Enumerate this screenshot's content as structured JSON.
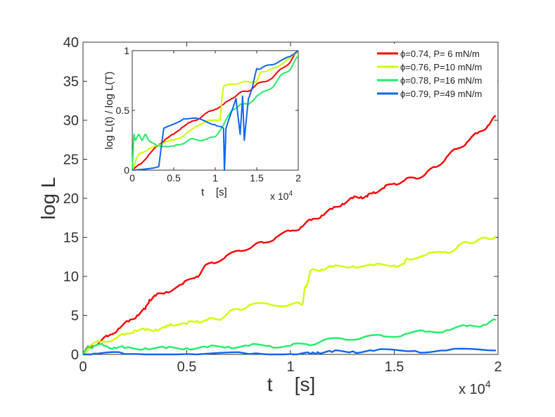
{
  "chart_data": [
    {
      "type": "line",
      "title": "",
      "xlabel": "t    [s]",
      "ylabel": "log L",
      "xlim": [
        0,
        20000
      ],
      "ylim": [
        0,
        40
      ],
      "x_ticks": [
        0,
        5000,
        10000,
        15000,
        20000
      ],
      "x_tick_labels": [
        "0",
        "0.5",
        "1",
        "1.5",
        "2"
      ],
      "y_ticks": [
        0,
        5,
        10,
        15,
        20,
        25,
        30,
        35,
        40
      ],
      "y_tick_labels": [
        "0",
        "5",
        "10",
        "15",
        "20",
        "25",
        "30",
        "35",
        "40"
      ],
      "x_multiplier_label": "x 10",
      "x_multiplier_exp": "4",
      "legend_position": "top-right",
      "series": [
        {
          "name": "ϕ=0.74, P= 6 mN/m",
          "color": "#ff0000",
          "points": [
            [
              0,
              0
            ],
            [
              300,
              1.0
            ],
            [
              800,
              1.6
            ],
            [
              1200,
              2.3
            ],
            [
              1700,
              3.3
            ],
            [
              2200,
              4.2
            ],
            [
              2600,
              5.0
            ],
            [
              3000,
              5.8
            ],
            [
              3200,
              7.0
            ],
            [
              3500,
              7.5
            ],
            [
              4000,
              8.0
            ],
            [
              4800,
              9.0
            ],
            [
              5500,
              10.0
            ],
            [
              5800,
              11.0
            ],
            [
              6200,
              11.8
            ],
            [
              6800,
              12.3
            ],
            [
              7500,
              13.3
            ],
            [
              8200,
              13.9
            ],
            [
              8700,
              14.3
            ],
            [
              9300,
              15.0
            ],
            [
              10000,
              15.8
            ],
            [
              10500,
              16.3
            ],
            [
              11000,
              17.2
            ],
            [
              11500,
              17.8
            ],
            [
              12000,
              18.6
            ],
            [
              12500,
              19.3
            ],
            [
              13000,
              20.0
            ],
            [
              13400,
              20.2
            ],
            [
              13700,
              20.2
            ],
            [
              14000,
              20.8
            ],
            [
              14500,
              21.3
            ],
            [
              15000,
              21.9
            ],
            [
              15500,
              22.3
            ],
            [
              16000,
              22.6
            ],
            [
              16500,
              23.1
            ],
            [
              17000,
              24.0
            ],
            [
              17500,
              25.2
            ],
            [
              18000,
              26.3
            ],
            [
              18500,
              27.2
            ],
            [
              19000,
              28.3
            ],
            [
              19500,
              29.3
            ],
            [
              19900,
              30.5
            ]
          ]
        },
        {
          "name": "ϕ=0.76, P=10 mN/m",
          "color": "#ccff00",
          "points": [
            [
              0,
              0
            ],
            [
              300,
              1.0
            ],
            [
              800,
              1.6
            ],
            [
              1500,
              2.0
            ],
            [
              2000,
              2.5
            ],
            [
              2500,
              3.1
            ],
            [
              3000,
              3.1
            ],
            [
              3500,
              3.2
            ],
            [
              4000,
              3.4
            ],
            [
              4200,
              3.9
            ],
            [
              5000,
              3.9
            ],
            [
              5500,
              4.3
            ],
            [
              6000,
              4.4
            ],
            [
              6500,
              4.5
            ],
            [
              7000,
              5.3
            ],
            [
              7500,
              5.8
            ],
            [
              8000,
              6.3
            ],
            [
              9000,
              6.4
            ],
            [
              10000,
              6.4
            ],
            [
              10500,
              6.4
            ],
            [
              10600,
              6.7
            ],
            [
              10700,
              8.6
            ],
            [
              10800,
              9.0
            ],
            [
              11000,
              10.8
            ],
            [
              11500,
              10.9
            ],
            [
              12000,
              11.2
            ],
            [
              13000,
              11.3
            ],
            [
              14000,
              11.4
            ],
            [
              15000,
              11.4
            ],
            [
              15500,
              11.6
            ],
            [
              15600,
              12.3
            ],
            [
              16500,
              12.7
            ],
            [
              17500,
              13.1
            ],
            [
              18000,
              13.6
            ],
            [
              18500,
              14.4
            ],
            [
              19000,
              14.6
            ],
            [
              19500,
              14.8
            ],
            [
              19900,
              15.2
            ]
          ]
        },
        {
          "name": "ϕ=0.78, P=16 mN/m",
          "color": "#22ee66",
          "points": [
            [
              0,
              0
            ],
            [
              300,
              0.9
            ],
            [
              500,
              1.1
            ],
            [
              1000,
              1.1
            ],
            [
              1500,
              0.9
            ],
            [
              2000,
              0.8
            ],
            [
              3000,
              0.8
            ],
            [
              4000,
              0.8
            ],
            [
              5000,
              0.8
            ],
            [
              6000,
              0.9
            ],
            [
              7000,
              1.0
            ],
            [
              8000,
              1.1
            ],
            [
              9000,
              1.1
            ],
            [
              10000,
              1.1
            ],
            [
              10800,
              1.3
            ],
            [
              11500,
              1.7
            ],
            [
              12500,
              2.0
            ],
            [
              13500,
              2.2
            ],
            [
              14500,
              2.3
            ],
            [
              15500,
              2.6
            ],
            [
              16500,
              2.9
            ],
            [
              17500,
              3.1
            ],
            [
              18500,
              3.6
            ],
            [
              19300,
              3.8
            ],
            [
              19900,
              4.4
            ]
          ]
        },
        {
          "name": "ϕ=0.79, P=49 mN/m",
          "color": "#1166ee",
          "points": [
            [
              0,
              0
            ],
            [
              500,
              0.1
            ],
            [
              2000,
              0.05
            ],
            [
              5000,
              0.05
            ],
            [
              8000,
              0.05
            ],
            [
              10000,
              0.05
            ],
            [
              11000,
              0.05
            ],
            [
              11300,
              0.3
            ],
            [
              12000,
              0.3
            ],
            [
              13000,
              0.4
            ],
            [
              14000,
              0.45
            ],
            [
              16000,
              0.45
            ],
            [
              17500,
              0.5
            ],
            [
              19900,
              0.5
            ]
          ]
        }
      ]
    },
    {
      "type": "line",
      "title": "",
      "xlabel": "t    [s]",
      "ylabel": "log L(t) / log L(T)",
      "xlim": [
        0,
        20000
      ],
      "ylim": [
        0,
        1
      ],
      "x_ticks": [
        0,
        5000,
        10000,
        15000,
        20000
      ],
      "x_tick_labels": [
        "0",
        "0.5",
        "1",
        "1.5",
        "2"
      ],
      "y_ticks": [
        0,
        0.5,
        1
      ],
      "y_tick_labels": [
        "0",
        "0.5",
        "1"
      ],
      "x_multiplier_label": "x 10",
      "x_multiplier_exp": "4",
      "series": [
        {
          "name": "ϕ=0.74, P= 6 mN/m",
          "color": "#ff0000",
          "points": [
            [
              0,
              0
            ],
            [
              1000,
              0.05
            ],
            [
              2000,
              0.13
            ],
            [
              3000,
              0.2
            ],
            [
              4000,
              0.26
            ],
            [
              5000,
              0.3
            ],
            [
              6000,
              0.36
            ],
            [
              7000,
              0.4
            ],
            [
              8000,
              0.43
            ],
            [
              9000,
              0.48
            ],
            [
              10000,
              0.51
            ],
            [
              11000,
              0.55
            ],
            [
              12000,
              0.6
            ],
            [
              13000,
              0.65
            ],
            [
              14000,
              0.66
            ],
            [
              15000,
              0.72
            ],
            [
              16000,
              0.74
            ],
            [
              17000,
              0.78
            ],
            [
              18000,
              0.85
            ],
            [
              19000,
              0.9
            ],
            [
              19900,
              1.0
            ]
          ]
        },
        {
          "name": "ϕ=0.76, P=10 mN/m",
          "color": "#ccff00",
          "points": [
            [
              0,
              0
            ],
            [
              500,
              0.1
            ],
            [
              1000,
              0.14
            ],
            [
              2000,
              0.18
            ],
            [
              3000,
              0.2
            ],
            [
              4000,
              0.24
            ],
            [
              5000,
              0.25
            ],
            [
              6000,
              0.28
            ],
            [
              7000,
              0.33
            ],
            [
              8000,
              0.38
            ],
            [
              9000,
              0.41
            ],
            [
              10000,
              0.42
            ],
            [
              10600,
              0.42
            ],
            [
              10800,
              0.6
            ],
            [
              11000,
              0.7
            ],
            [
              12000,
              0.72
            ],
            [
              13000,
              0.73
            ],
            [
              14000,
              0.74
            ],
            [
              15000,
              0.74
            ],
            [
              15500,
              0.82
            ],
            [
              16500,
              0.84
            ],
            [
              17500,
              0.86
            ],
            [
              18500,
              0.92
            ],
            [
              19900,
              0.98
            ]
          ]
        },
        {
          "name": "ϕ=0.78, P=16 mN/m",
          "color": "#22ee66",
          "points": [
            [
              0,
              0
            ],
            [
              200,
              0.3
            ],
            [
              400,
              0.25
            ],
            [
              800,
              0.3
            ],
            [
              1200,
              0.25
            ],
            [
              1600,
              0.3
            ],
            [
              2000,
              0.25
            ],
            [
              3000,
              0.2
            ],
            [
              4000,
              0.2
            ],
            [
              5000,
              0.2
            ],
            [
              6000,
              0.22
            ],
            [
              7000,
              0.26
            ],
            [
              8000,
              0.25
            ],
            [
              9000,
              0.26
            ],
            [
              10000,
              0.28
            ],
            [
              11000,
              0.38
            ],
            [
              12000,
              0.5
            ],
            [
              13000,
              0.55
            ],
            [
              14000,
              0.55
            ],
            [
              15000,
              0.62
            ],
            [
              16000,
              0.66
            ],
            [
              17000,
              0.7
            ],
            [
              18000,
              0.8
            ],
            [
              19000,
              0.84
            ],
            [
              19900,
              0.95
            ]
          ]
        },
        {
          "name": "ϕ=0.79, P=49 mN/m",
          "color": "#1166ee",
          "points": [
            [
              0,
              0
            ],
            [
              3200,
              0.03
            ],
            [
              3800,
              0.35
            ],
            [
              6200,
              0.43
            ],
            [
              8000,
              0.43
            ],
            [
              10000,
              0.38
            ],
            [
              11000,
              0.35
            ],
            [
              11100,
              0.0
            ],
            [
              11300,
              0.35
            ],
            [
              12500,
              0.6
            ],
            [
              13000,
              0.3
            ],
            [
              13300,
              0.62
            ],
            [
              13500,
              0.25
            ],
            [
              14000,
              0.6
            ],
            [
              14500,
              0.7
            ],
            [
              15000,
              0.85
            ],
            [
              15500,
              0.85
            ],
            [
              16500,
              0.88
            ],
            [
              17500,
              0.9
            ],
            [
              19000,
              0.95
            ],
            [
              19900,
              1.0
            ]
          ]
        }
      ]
    }
  ]
}
